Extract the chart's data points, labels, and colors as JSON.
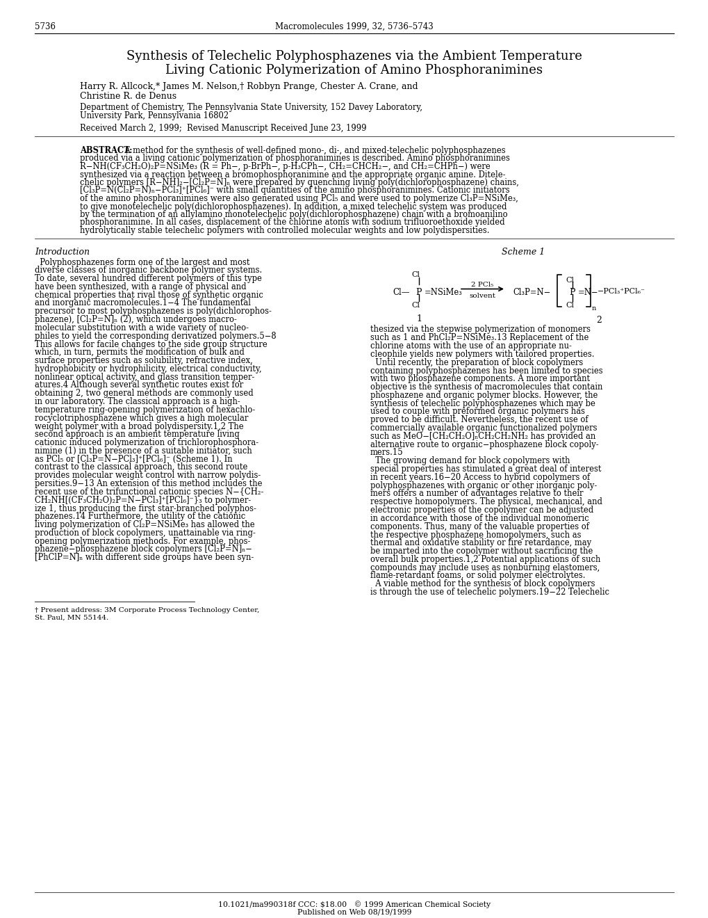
{
  "page_number": "5736",
  "journal_header": "Macromolecules 1999, 32, 5736–5743",
  "title_line1": "Synthesis of Telechelic Polyphosphazenes via the Ambient Temperature",
  "title_line2": "Living Cationic Polymerization of Amino Phosphoranimines",
  "authors_line1": "Harry R. Allcock,* James M. Nelson,† Robbyn Prange, Chester A. Crane, and",
  "authors_line2": "Christine R. de Denus",
  "affiliation_line1": "Department of Chemistry, The Pennsylvania State University, 152 Davey Laboratory,",
  "affiliation_line2": "University Park, Pennsylvania 16802",
  "received": "Received March 2, 1999;  Revised Manuscript Received June 23, 1999",
  "abstract_lines": [
    "ABSTRACT:  A method for the synthesis of well-defined mono-, di-, and mixed-telechelic polyphosphazenes",
    "produced via a living cationic polymerization of phosphoranimines is described. Amino phosphoranimines",
    "R−NH(CF₃CH₂O)₂P=NSiMe₃ (R = Ph−, p-BrPh−, p-H₃CPh−, CH₂=CHCH₂−, and CH₂=CHPh−) were",
    "synthesized via a reaction between a bromophosphoranimine and the appropriate organic amine. Ditele-",
    "chelic polymers [R−NH]₂−[Cl₂P=N]ₙ were prepared by quenching living poly(dichlorophosphazene) chains,",
    "[Cl₃P=N(Cl₂P=N)ₙ−PCl₃]⁺[PCl₆]⁻ with small quantities of the amino phosphoranimines. Cationic initiators",
    "of the amino phosphoranimines were also generated using PCl₅ and were used to polymerize Cl₃P=NSiMe₃,",
    "to give monotelechelic poly(dichlorophosphazenes). In addition, a mixed telechelic system was produced",
    "by the termination of an allylamino monotelechelic poly(dichlorophosphazene) chain with a bromoanilino",
    "phosphoranimine. In all cases, displacement of the chlorine atoms with sodium trifluoroethoxide yielded",
    "hydrolytically stable telechelic polymers with controlled molecular weights and low polydispersities."
  ],
  "intro_label": "Introduction",
  "scheme_label": "Scheme 1",
  "left_col_lines": [
    "  Polyphosphazenes form one of the largest and most",
    "diverse classes of inorganic backbone polymer systems.",
    "To date, several hundred different polymers of this type",
    "have been synthesized, with a range of physical and",
    "chemical properties that rival those of synthetic organic",
    "and inorganic macromolecules.1−4 The fundamental",
    "precursor to most polyphosphazenes is poly(dichlorophos-",
    "phazene), [Cl₂P=N]ₙ (2), which undergoes macro-",
    "molecular substitution with a wide variety of nucleo-",
    "philes to yield the corresponding derivatized polymers.5−8",
    "This allows for facile changes to the side group structure",
    "which, in turn, permits the modification of bulk and",
    "surface properties such as solubility, refractive index,",
    "hydrophobicity or hydrophilicity, electrical conductivity,",
    "nonlinear optical activity, and glass transition temper-",
    "atures.4 Although several synthetic routes exist for",
    "obtaining 2, two general methods are commonly used",
    "in our laboratory. The classical approach is a high-",
    "temperature ring-opening polymerization of hexachlo-",
    "rocyclotriphosphazene which gives a high molecular",
    "weight polymer with a broad polydispersity.1,2 The",
    "second approach is an ambient temperature living",
    "cationic induced polymerization of trichlorophosphora-",
    "nimine (1) in the presence of a suitable initiator, such",
    "as PCl₅ or [Cl₃P=N−PCl₃]⁺[PCl₆]⁻ (Scheme 1). In",
    "contrast to the classical approach, this second route",
    "provides molecular weight control with narrow polydis-",
    "persities.9−13 An extension of this method includes the",
    "recent use of the trifunctional cationic species N−{CH₂-",
    "CH₂NH[(CF₃CH₂O)₂P=N−PCl₃]⁺[PCl₆]⁻}₃ to polymer-",
    "ize 1, thus producing the first star-branched polyphos-",
    "phazenes.14 Furthermore, the utility of the cationic",
    "living polymerization of Cl₂P=NSiMe₃ has allowed the",
    "production of block copolymers, unattainable via ring-",
    "opening polymerization methods. For example, phos-",
    "phazene−phosphazene block copolymers [Cl₂P=N]ₙ−",
    "[PhClP=N]ₙ with different side groups have been syn-"
  ],
  "right_col_lines": [
    "thesized via the stepwise polymerization of monomers",
    "such as 1 and PhCl₂P=NSiMe₃.13 Replacement of the",
    "chlorine atoms with the use of an appropriate nu-",
    "cleophile yields new polymers with tailored properties.",
    "  Until recently, the preparation of block copolymers",
    "containing polyphosphazenes has been limited to species",
    "with two phosphazene components. A more important",
    "objective is the synthesis of macromolecules that contain",
    "phosphazene and organic polymer blocks. However, the",
    "synthesis of telechelic polyphosphazenes which may be",
    "used to couple with preformed organic polymers has",
    "proved to be difficult. Nevertheless, the recent use of",
    "commercially available organic functionalized polymers",
    "such as MeO−[CH₂CH₂O]ₙCH₂CH₂NH₂ has provided an",
    "alternative route to organic−phosphazene block copoly-",
    "mers.15",
    "  The growing demand for block copolymers with",
    "special properties has stimulated a great deal of interest",
    "in recent years.16−20 Access to hybrid copolymers of",
    "polyphosphazenes with organic or other inorganic poly-",
    "mers offers a number of advantages relative to their",
    "respective homopolymers. The physical, mechanical, and",
    "electronic properties of the copolymer can be adjusted",
    "in accordance with those of the individual monomeric",
    "components. Thus, many of the valuable properties of",
    "the respective phosphazene homopolymers, such as",
    "thermal and oxidative stability or fire retardance, may",
    "be imparted into the copolymer without sacrificing the",
    "overall bulk properties.1,2 Potential applications of such",
    "compounds may include uses as nonburning elastomers,",
    "flame-retardant foams, or solid polymer electrolytes.",
    "  A viable method for the synthesis of block copolymers",
    "is through the use of telechelic polymers.19−22 Telechelic"
  ],
  "footnote_line1": "† Present address: 3M Corporate Process Technology Center,",
  "footnote_line2": "St. Paul, MN 55144.",
  "doi_line": "10.1021/ma990318f CCC: $18.00   © 1999 American Chemical Society",
  "published_line": "Published on Web 08/19/1999",
  "background_color": "#ffffff"
}
